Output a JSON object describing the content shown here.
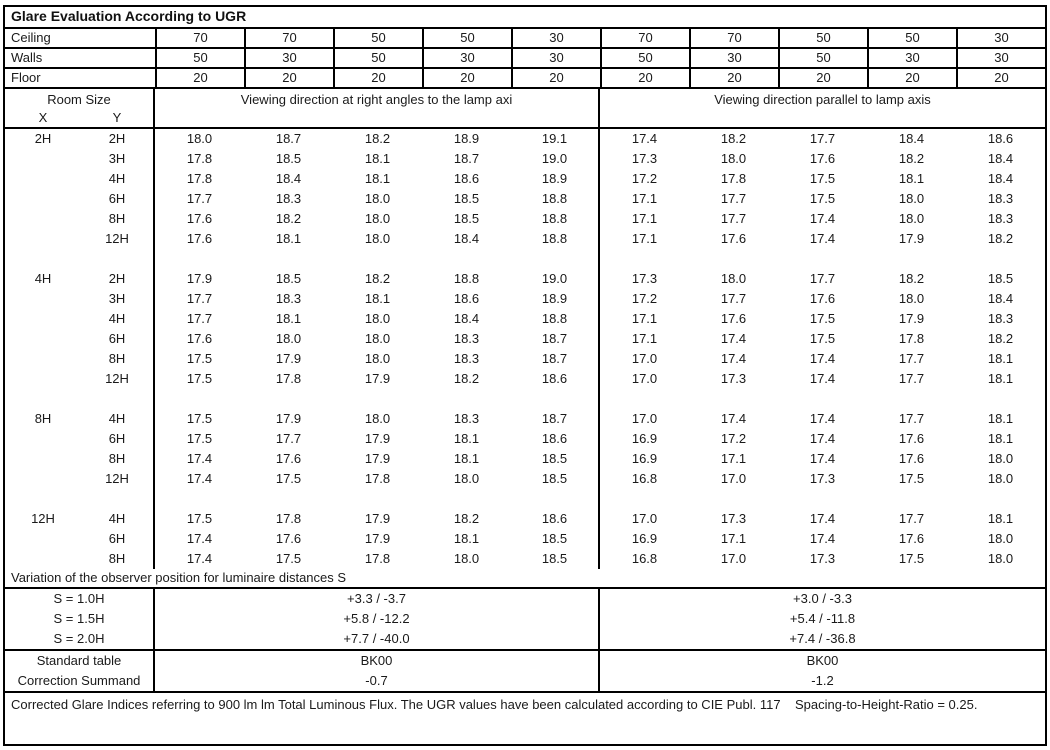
{
  "title": "Glare Evaluation According to UGR",
  "colors": {
    "background": "#ffffff",
    "border": "#000000",
    "text": "#1a1a1a"
  },
  "surfaces": {
    "rows": [
      {
        "label": "Ceiling",
        "values": [
          "70",
          "70",
          "50",
          "50",
          "30",
          "70",
          "70",
          "50",
          "50",
          "30"
        ]
      },
      {
        "label": "Walls",
        "values": [
          "50",
          "30",
          "50",
          "30",
          "30",
          "50",
          "30",
          "50",
          "30",
          "30"
        ]
      },
      {
        "label": "Floor",
        "values": [
          "20",
          "20",
          "20",
          "20",
          "20",
          "20",
          "20",
          "20",
          "20",
          "20"
        ]
      }
    ]
  },
  "header": {
    "room_size_label": "Room Size",
    "x_label": "X",
    "y_label": "Y",
    "left_group_label": "Viewing direction at right angles to the lamp axi",
    "right_group_label": "Viewing direction parallel to lamp axis"
  },
  "ugr_table": {
    "blocks": [
      {
        "x": "2H",
        "rows": [
          {
            "y": "2H",
            "right_angles": [
              "18.0",
              "18.7",
              "18.2",
              "18.9",
              "19.1"
            ],
            "parallel": [
              "17.4",
              "18.2",
              "17.7",
              "18.4",
              "18.6"
            ]
          },
          {
            "y": "3H",
            "right_angles": [
              "17.8",
              "18.5",
              "18.1",
              "18.7",
              "19.0"
            ],
            "parallel": [
              "17.3",
              "18.0",
              "17.6",
              "18.2",
              "18.4"
            ]
          },
          {
            "y": "4H",
            "right_angles": [
              "17.8",
              "18.4",
              "18.1",
              "18.6",
              "18.9"
            ],
            "parallel": [
              "17.2",
              "17.8",
              "17.5",
              "18.1",
              "18.4"
            ]
          },
          {
            "y": "6H",
            "right_angles": [
              "17.7",
              "18.3",
              "18.0",
              "18.5",
              "18.8"
            ],
            "parallel": [
              "17.1",
              "17.7",
              "17.5",
              "18.0",
              "18.3"
            ]
          },
          {
            "y": "8H",
            "right_angles": [
              "17.6",
              "18.2",
              "18.0",
              "18.5",
              "18.8"
            ],
            "parallel": [
              "17.1",
              "17.7",
              "17.4",
              "18.0",
              "18.3"
            ]
          },
          {
            "y": "12H",
            "right_angles": [
              "17.6",
              "18.1",
              "18.0",
              "18.4",
              "18.8"
            ],
            "parallel": [
              "17.1",
              "17.6",
              "17.4",
              "17.9",
              "18.2"
            ]
          }
        ]
      },
      {
        "x": "4H",
        "rows": [
          {
            "y": "2H",
            "right_angles": [
              "17.9",
              "18.5",
              "18.2",
              "18.8",
              "19.0"
            ],
            "parallel": [
              "17.3",
              "18.0",
              "17.7",
              "18.2",
              "18.5"
            ]
          },
          {
            "y": "3H",
            "right_angles": [
              "17.7",
              "18.3",
              "18.1",
              "18.6",
              "18.9"
            ],
            "parallel": [
              "17.2",
              "17.7",
              "17.6",
              "18.0",
              "18.4"
            ]
          },
          {
            "y": "4H",
            "right_angles": [
              "17.7",
              "18.1",
              "18.0",
              "18.4",
              "18.8"
            ],
            "parallel": [
              "17.1",
              "17.6",
              "17.5",
              "17.9",
              "18.3"
            ]
          },
          {
            "y": "6H",
            "right_angles": [
              "17.6",
              "18.0",
              "18.0",
              "18.3",
              "18.7"
            ],
            "parallel": [
              "17.1",
              "17.4",
              "17.5",
              "17.8",
              "18.2"
            ]
          },
          {
            "y": "8H",
            "right_angles": [
              "17.5",
              "17.9",
              "18.0",
              "18.3",
              "18.7"
            ],
            "parallel": [
              "17.0",
              "17.4",
              "17.4",
              "17.7",
              "18.1"
            ]
          },
          {
            "y": "12H",
            "right_angles": [
              "17.5",
              "17.8",
              "17.9",
              "18.2",
              "18.6"
            ],
            "parallel": [
              "17.0",
              "17.3",
              "17.4",
              "17.7",
              "18.1"
            ]
          }
        ]
      },
      {
        "x": "8H",
        "rows": [
          {
            "y": "4H",
            "right_angles": [
              "17.5",
              "17.9",
              "18.0",
              "18.3",
              "18.7"
            ],
            "parallel": [
              "17.0",
              "17.4",
              "17.4",
              "17.7",
              "18.1"
            ]
          },
          {
            "y": "6H",
            "right_angles": [
              "17.5",
              "17.7",
              "17.9",
              "18.1",
              "18.6"
            ],
            "parallel": [
              "16.9",
              "17.2",
              "17.4",
              "17.6",
              "18.1"
            ]
          },
          {
            "y": "8H",
            "right_angles": [
              "17.4",
              "17.6",
              "17.9",
              "18.1",
              "18.5"
            ],
            "parallel": [
              "16.9",
              "17.1",
              "17.4",
              "17.6",
              "18.0"
            ]
          },
          {
            "y": "12H",
            "right_angles": [
              "17.4",
              "17.5",
              "17.8",
              "18.0",
              "18.5"
            ],
            "parallel": [
              "16.8",
              "17.0",
              "17.3",
              "17.5",
              "18.0"
            ]
          }
        ]
      },
      {
        "x": "12H",
        "rows": [
          {
            "y": "4H",
            "right_angles": [
              "17.5",
              "17.8",
              "17.9",
              "18.2",
              "18.6"
            ],
            "parallel": [
              "17.0",
              "17.3",
              "17.4",
              "17.7",
              "18.1"
            ]
          },
          {
            "y": "6H",
            "right_angles": [
              "17.4",
              "17.6",
              "17.9",
              "18.1",
              "18.5"
            ],
            "parallel": [
              "16.9",
              "17.1",
              "17.4",
              "17.6",
              "18.0"
            ]
          },
          {
            "y": "8H",
            "right_angles": [
              "17.4",
              "17.5",
              "17.8",
              "18.0",
              "18.5"
            ],
            "parallel": [
              "16.8",
              "17.0",
              "17.3",
              "17.5",
              "18.0"
            ]
          }
        ]
      }
    ]
  },
  "variation": {
    "section_title": "Variation of the observer position for luminaire distances S",
    "rows": [
      {
        "label": "S = 1.0H",
        "left": "+3.3 / -3.7",
        "right": "+3.0 / -3.3"
      },
      {
        "label": "S = 1.5H",
        "left": "+5.8 / -12.2",
        "right": "+5.4 / -11.8"
      },
      {
        "label": "S = 2.0H",
        "left": "+7.7 / -40.0",
        "right": "+7.4 / -36.8"
      }
    ],
    "summary_rows": [
      {
        "label": "Standard table",
        "left": "BK00",
        "right": "BK00"
      },
      {
        "label": "Correction Summand",
        "left": "-0.7",
        "right": "-1.2"
      }
    ]
  },
  "footer": {
    "text": "Corrected Glare Indices referring to 900 lm lm Total Luminous Flux. The UGR values have been calculated according to CIE Publ. 117    Spacing-to-Height-Ratio = 0.25."
  }
}
